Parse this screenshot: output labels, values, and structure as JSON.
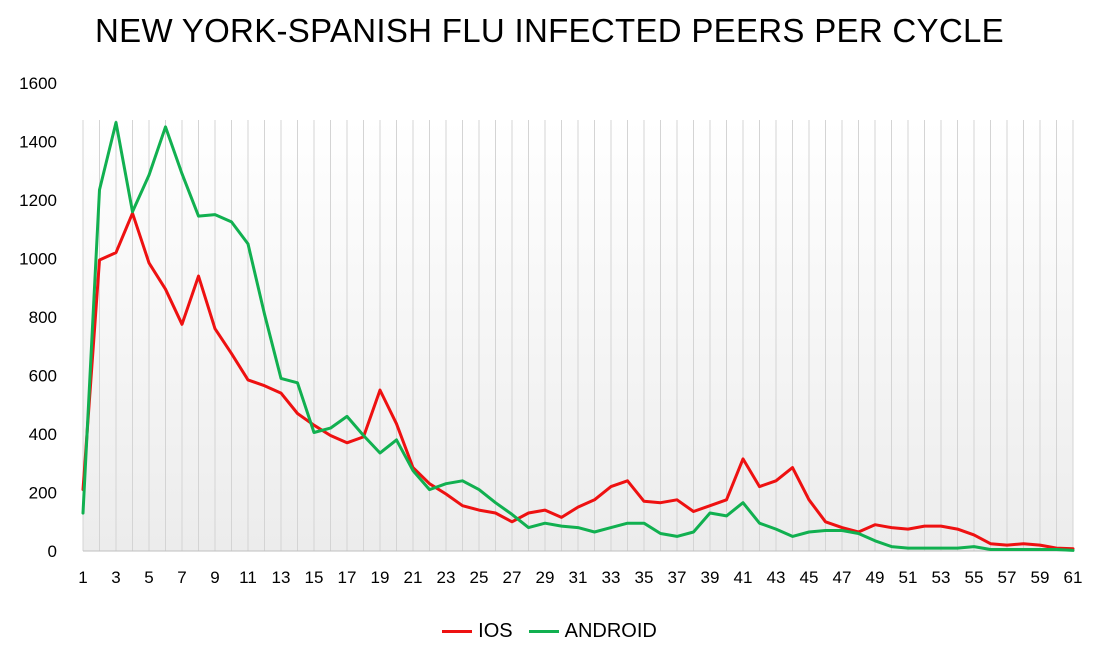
{
  "chart_data": {
    "type": "line",
    "title": "NEW YORK-SPANISH FLU INFECTED PEERS PER CYCLE",
    "xlabel": "",
    "ylabel": "",
    "ylim": [
      0,
      1600
    ],
    "yticks": [
      0,
      200,
      400,
      600,
      800,
      1000,
      1200,
      1400,
      1600
    ],
    "x": [
      1,
      2,
      3,
      4,
      5,
      6,
      7,
      8,
      9,
      10,
      11,
      12,
      13,
      14,
      15,
      16,
      17,
      18,
      19,
      20,
      21,
      22,
      23,
      24,
      25,
      26,
      27,
      28,
      29,
      30,
      31,
      32,
      33,
      34,
      35,
      36,
      37,
      38,
      39,
      40,
      41,
      42,
      43,
      44,
      45,
      46,
      47,
      48,
      49,
      50,
      51,
      52,
      53,
      54,
      55,
      56,
      57,
      58,
      59,
      60,
      61
    ],
    "xtick_labels": [
      1,
      3,
      5,
      7,
      9,
      11,
      13,
      15,
      17,
      19,
      21,
      23,
      25,
      27,
      29,
      31,
      33,
      35,
      37,
      39,
      41,
      43,
      45,
      47,
      49,
      51,
      53,
      55,
      57,
      59,
      61
    ],
    "grid": "vertical lines at each category",
    "legend_position": "bottom",
    "series": [
      {
        "name": "IOS",
        "color": "#ee1111",
        "values": [
          210,
          995,
          1020,
          1155,
          985,
          895,
          775,
          940,
          760,
          675,
          585,
          565,
          540,
          470,
          430,
          395,
          370,
          390,
          550,
          435,
          285,
          230,
          195,
          155,
          140,
          130,
          100,
          130,
          140,
          115,
          150,
          175,
          220,
          240,
          170,
          165,
          175,
          135,
          155,
          175,
          315,
          220,
          240,
          285,
          175,
          100,
          80,
          65,
          90,
          80,
          75,
          85,
          85,
          75,
          55,
          25,
          20,
          25,
          20,
          10,
          8
        ]
      },
      {
        "name": "ANDROID",
        "color": "#11b050",
        "values": [
          130,
          1235,
          1465,
          1160,
          1285,
          1450,
          1290,
          1145,
          1150,
          1125,
          1050,
          810,
          590,
          575,
          405,
          420,
          460,
          395,
          335,
          380,
          275,
          210,
          230,
          240,
          210,
          165,
          125,
          80,
          95,
          85,
          80,
          65,
          80,
          95,
          95,
          60,
          50,
          65,
          130,
          120,
          165,
          95,
          75,
          50,
          65,
          70,
          70,
          60,
          35,
          15,
          10,
          10,
          10,
          10,
          15,
          5,
          5,
          5,
          5,
          5,
          2
        ]
      }
    ]
  }
}
